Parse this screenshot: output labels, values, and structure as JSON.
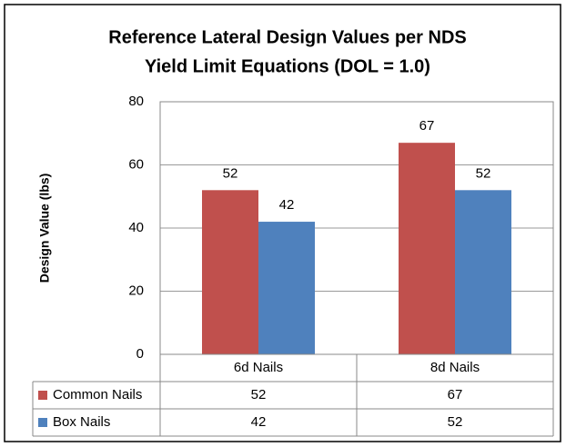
{
  "chart_data": {
    "type": "bar",
    "title": [
      "Reference Lateral Design Values per  NDS",
      "Yield Limit Equations (DOL = 1.0)"
    ],
    "y_label": "Design Value (lbs)",
    "categories": [
      "6d Nails",
      "8d Nails"
    ],
    "series": [
      {
        "name": "Common Nails",
        "color": "#c0504d",
        "values": [
          52,
          67
        ]
      },
      {
        "name": "Box Nails",
        "color": "#4f81bd",
        "values": [
          42,
          52
        ]
      }
    ],
    "ylim": [
      0,
      80
    ],
    "yticks": [
      0,
      20,
      40,
      60,
      80
    ],
    "grid": true,
    "data_table": true
  }
}
